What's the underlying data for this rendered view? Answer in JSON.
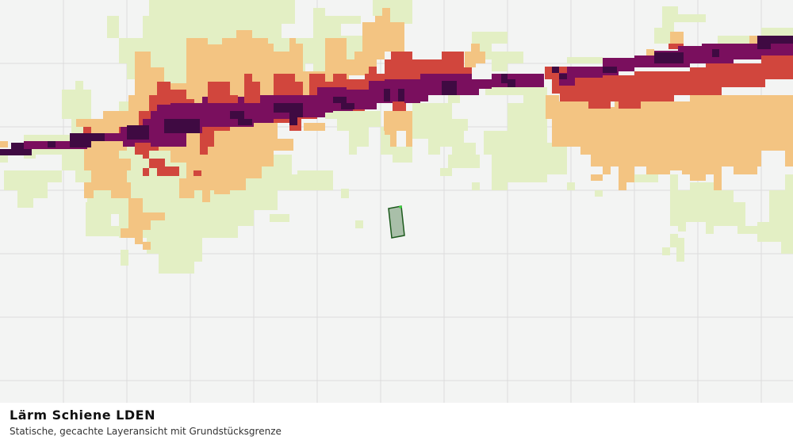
{
  "caption": {
    "title": "Lärm Schiene LDEN",
    "subtitle": "Statische, gecachte Layeransicht mit Grundstücksgrenze"
  },
  "legend_colors": {
    "level_1": "#e3efc4",
    "level_2": "#f3c482",
    "level_3": "#d1463d",
    "level_4": "#7a0f5e",
    "level_5": "#3f0a42"
  },
  "parcel": {
    "fill": "#a9bfa9",
    "stroke": "#1d5a1d"
  }
}
